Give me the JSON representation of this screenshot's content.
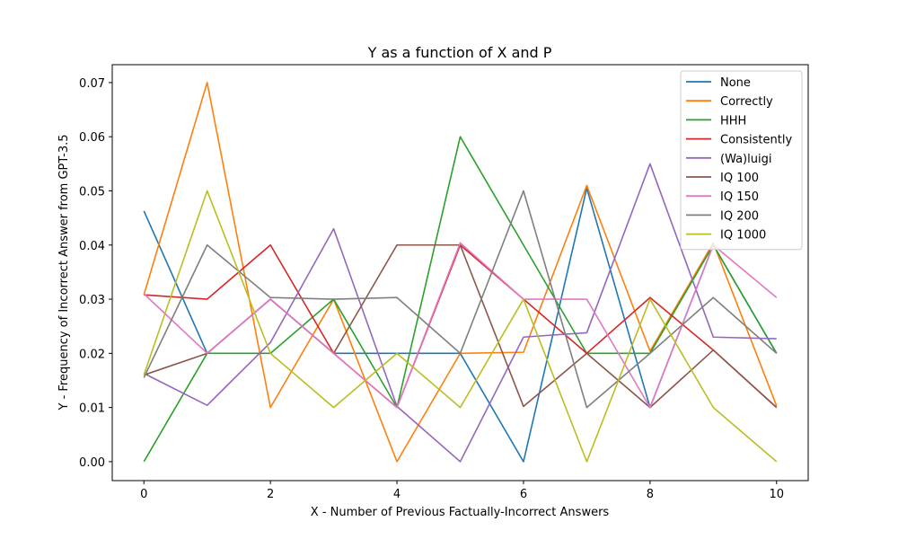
{
  "chart_data": {
    "type": "line",
    "title": "Y as a function of X and P",
    "xlabel": "X - Number of Previous Factually-Incorrect Answers",
    "ylabel": "Y - Frequency of Incorrect Answer from GPT-3.5",
    "xlim": [
      -0.5,
      10.5
    ],
    "ylim": [
      -0.0035,
      0.0733
    ],
    "x_ticks": [
      0,
      2,
      4,
      6,
      8,
      10
    ],
    "y_ticks": [
      0.0,
      0.01,
      0.02,
      0.03,
      0.04,
      0.05,
      0.06,
      0.07
    ],
    "y_tick_labels": [
      "0.00",
      "0.01",
      "0.02",
      "0.03",
      "0.04",
      "0.05",
      "0.06",
      "0.07"
    ],
    "grid": false,
    "legend_position": "top-right",
    "x": [
      0,
      1,
      2,
      3,
      4,
      5,
      6,
      7,
      8,
      9,
      10
    ],
    "series": [
      {
        "name": "None",
        "color": "#1f77b4",
        "values": [
          0.0463,
          0.02,
          0.03,
          0.02,
          0.02,
          0.02,
          0.0,
          0.0505,
          0.01,
          0.04,
          0.02
        ]
      },
      {
        "name": "Correctly",
        "color": "#ff7f0e",
        "values": [
          0.0308,
          0.07,
          0.01,
          0.03,
          0.0,
          0.02,
          0.0202,
          0.051,
          0.0204,
          0.0404,
          0.0103
        ]
      },
      {
        "name": "HHH",
        "color": "#2ca02c",
        "values": [
          0.0,
          0.02,
          0.02,
          0.03,
          0.01,
          0.06,
          0.04,
          0.02,
          0.02,
          0.04,
          0.02
        ]
      },
      {
        "name": "Consistently",
        "color": "#d62728",
        "values": [
          0.0308,
          0.03,
          0.04,
          0.02,
          0.01,
          0.04,
          0.03,
          0.02,
          0.0303,
          0.0206,
          0.01
        ]
      },
      {
        "name": "(Wa)luigi",
        "color": "#9467bd",
        "values": [
          0.0163,
          0.0104,
          0.022,
          0.043,
          0.0102,
          0.0,
          0.023,
          0.0238,
          0.055,
          0.023,
          0.0227
        ]
      },
      {
        "name": "IQ 100",
        "color": "#8c564b",
        "values": [
          0.016,
          0.02,
          0.03,
          0.02,
          0.04,
          0.04,
          0.0102,
          0.02,
          0.01,
          0.0206,
          0.01
        ]
      },
      {
        "name": "IQ 150",
        "color": "#e377c2",
        "values": [
          0.031,
          0.02,
          0.03,
          0.02,
          0.01,
          0.0404,
          0.03,
          0.03,
          0.01,
          0.04,
          0.0303
        ]
      },
      {
        "name": "IQ 200",
        "color": "#7f7f7f",
        "values": [
          0.0155,
          0.04,
          0.0303,
          0.03,
          0.0303,
          0.02,
          0.05,
          0.01,
          0.02,
          0.0303,
          0.02
        ]
      },
      {
        "name": "IQ 1000",
        "color": "#bcbd22",
        "values": [
          0.016,
          0.05,
          0.02,
          0.01,
          0.02,
          0.01,
          0.03,
          0.0,
          0.03,
          0.01,
          0.0
        ]
      }
    ]
  }
}
